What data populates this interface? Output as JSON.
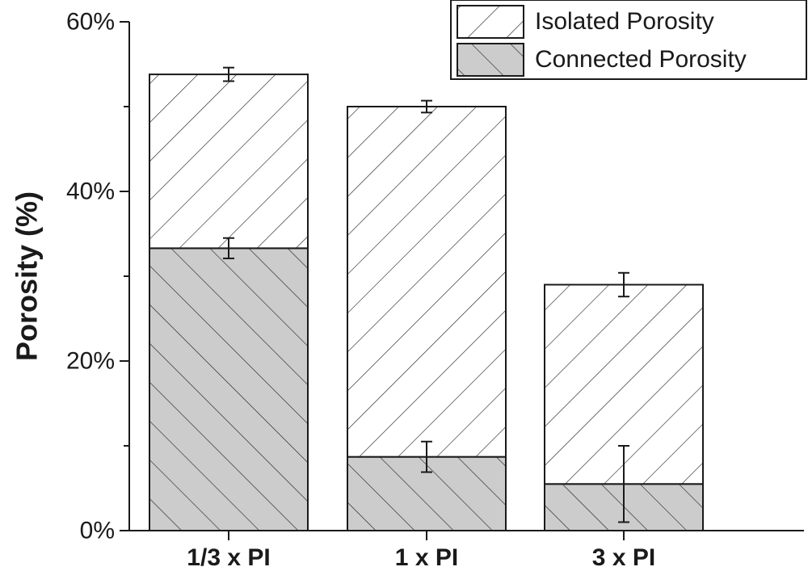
{
  "chart_data": {
    "type": "bar",
    "stacked": true,
    "categories": [
      "1/3 x PI",
      "1 x PI",
      "3 x PI"
    ],
    "series": [
      {
        "name": "Connected Porosity",
        "values": [
          33.3,
          8.7,
          5.5
        ],
        "errors": [
          1.2,
          1.8,
          4.5
        ],
        "color": "#cccccc",
        "hatch": "backslash"
      },
      {
        "name": "Isolated Porosity",
        "values": [
          20.5,
          41.3,
          23.5
        ],
        "errors": [
          0.8,
          0.7,
          1.4
        ],
        "color": "#ffffff",
        "hatch": "slash"
      }
    ],
    "ylabel": "Porosity (%)",
    "xlabel": "",
    "ylim": [
      0,
      60
    ],
    "yticks": [
      0,
      20,
      40,
      60
    ],
    "ytick_labels": [
      "0%",
      "20%",
      "40%",
      "60%"
    ],
    "minor_yticks": [
      10,
      30,
      50
    ],
    "legend_position": "top-right",
    "grid": false
  }
}
